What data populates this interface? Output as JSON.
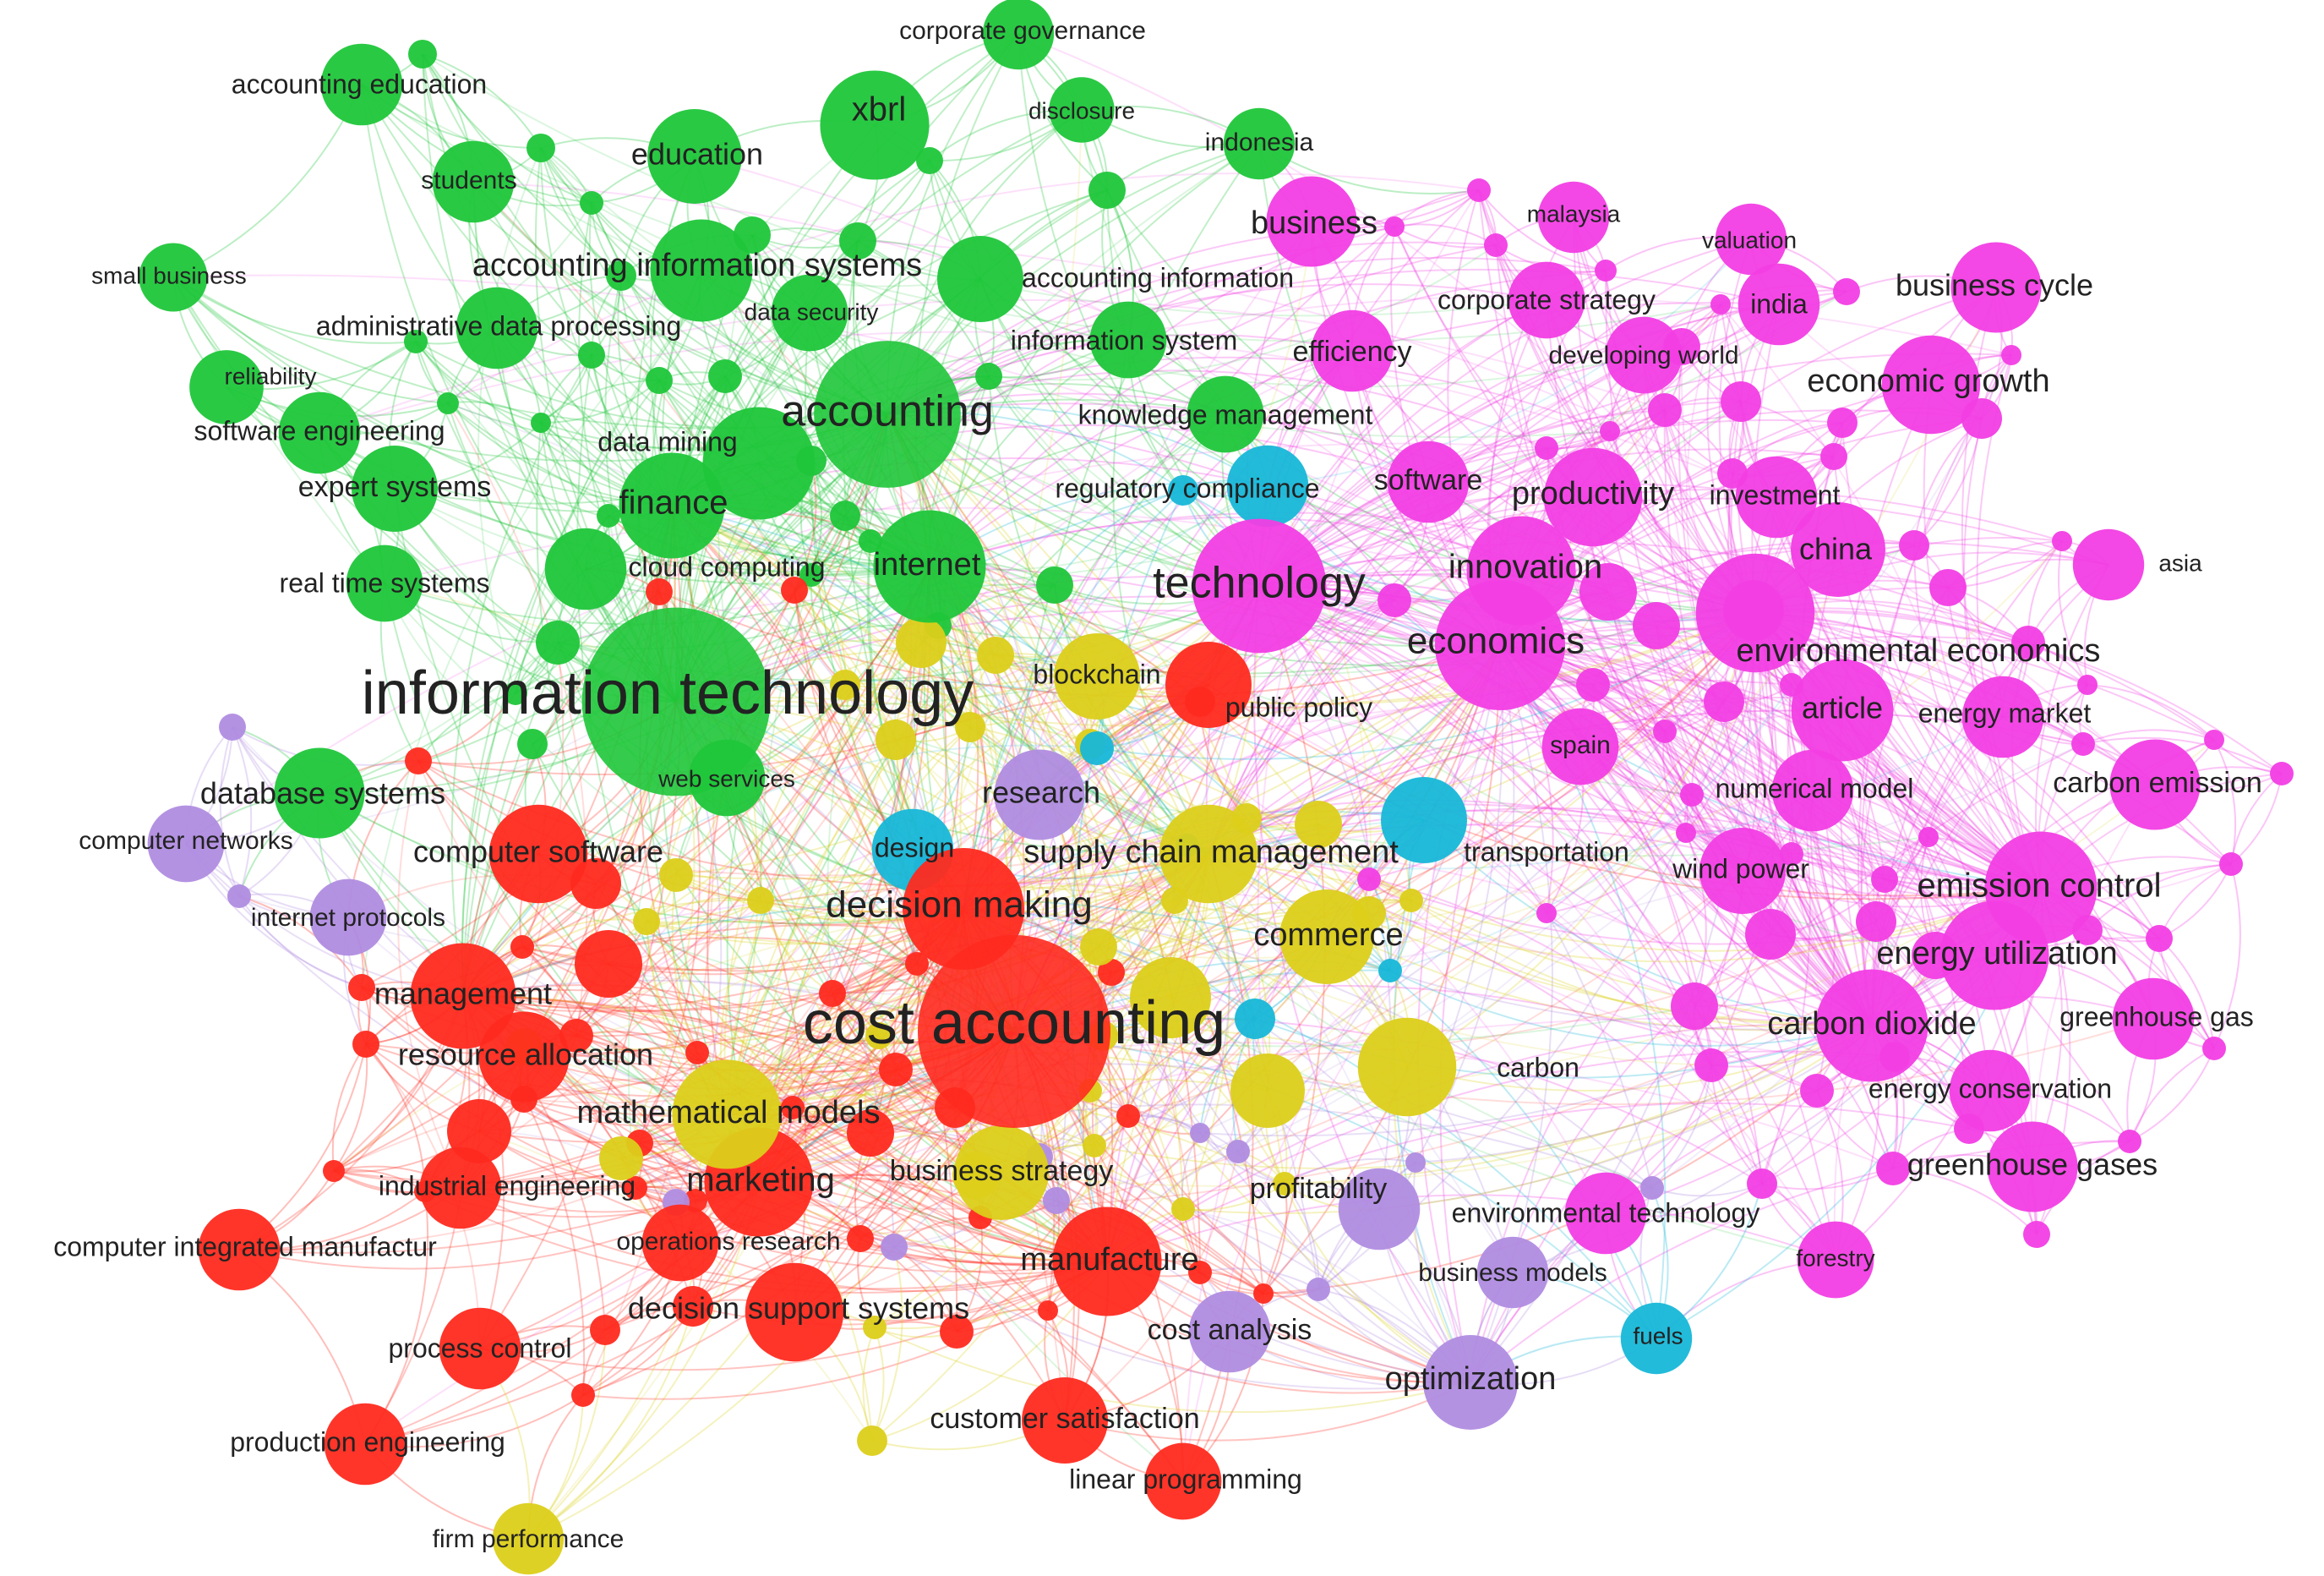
{
  "colors": {
    "green": "#1fc63a",
    "pink": "#f23ee4",
    "red": "#ff2a1f",
    "yellow": "#dccf1a",
    "cyan": "#17b7d8",
    "purple": "#b08ce0"
  },
  "nodes": [
    {
      "id": "information_technology",
      "label": "information technology",
      "cluster": "green",
      "weight": 95
    },
    {
      "id": "accounting",
      "label": "accounting",
      "cluster": "green",
      "weight": 55
    },
    {
      "id": "xbrl",
      "label": "xbrl",
      "cluster": "green",
      "weight": 28
    },
    {
      "id": "education",
      "label": "education",
      "cluster": "green",
      "weight": 20
    },
    {
      "id": "accounting_education",
      "label": "accounting education",
      "cluster": "green",
      "weight": 14
    },
    {
      "id": "corporate_governance",
      "label": "corporate governance",
      "cluster": "green",
      "weight": 10
    },
    {
      "id": "disclosure",
      "label": "disclosure",
      "cluster": "green",
      "weight": 8
    },
    {
      "id": "indonesia",
      "label": "indonesia",
      "cluster": "green",
      "weight": 10
    },
    {
      "id": "students",
      "label": "students",
      "cluster": "green",
      "weight": 14
    },
    {
      "id": "small_business",
      "label": "small business",
      "cluster": "green",
      "weight": 9
    },
    {
      "id": "accounting_information_systems",
      "label": "accounting information systems",
      "cluster": "green",
      "weight": 24
    },
    {
      "id": "accounting_information",
      "label": "accounting information",
      "cluster": "green",
      "weight": 16
    },
    {
      "id": "administrative_data_processing",
      "label": "administrative data processing",
      "cluster": "green",
      "weight": 14
    },
    {
      "id": "data_security",
      "label": "data security",
      "cluster": "green",
      "weight": 12
    },
    {
      "id": "information_system",
      "label": "information system",
      "cluster": "green",
      "weight": 12
    },
    {
      "id": "reliability",
      "label": "reliability",
      "cluster": "green",
      "weight": 11
    },
    {
      "id": "software_engineering",
      "label": "software engineering",
      "cluster": "green",
      "weight": 14
    },
    {
      "id": "data_mining",
      "label": "data mining",
      "cluster": "green",
      "weight": 30
    },
    {
      "id": "knowledge_management",
      "label": "knowledge management",
      "cluster": "green",
      "weight": 12
    },
    {
      "id": "expert_systems",
      "label": "expert systems",
      "cluster": "green",
      "weight": 16
    },
    {
      "id": "finance",
      "label": "finance",
      "cluster": "green",
      "weight": 26
    },
    {
      "id": "real_time_systems",
      "label": "real time systems",
      "cluster": "green",
      "weight": 12
    },
    {
      "id": "cloud_computing",
      "label": "cloud computing",
      "cluster": "green",
      "weight": 14
    },
    {
      "id": "internet",
      "label": "internet",
      "cluster": "green",
      "weight": 30
    },
    {
      "id": "database_systems",
      "label": "database systems",
      "cluster": "green",
      "weight": 18
    },
    {
      "id": "web_services",
      "label": "web services",
      "cluster": "green",
      "weight": 12
    },
    {
      "id": "business",
      "label": "business",
      "cluster": "pink",
      "weight": 18
    },
    {
      "id": "malaysia",
      "label": "malaysia",
      "cluster": "pink",
      "weight": 10
    },
    {
      "id": "valuation",
      "label": "valuation",
      "cluster": "pink",
      "weight": 10
    },
    {
      "id": "business_cycle",
      "label": "business cycle",
      "cluster": "pink",
      "weight": 18
    },
    {
      "id": "corporate_strategy",
      "label": "corporate strategy",
      "cluster": "pink",
      "weight": 12
    },
    {
      "id": "india",
      "label": "india",
      "cluster": "pink",
      "weight": 14
    },
    {
      "id": "efficiency",
      "label": "efficiency",
      "cluster": "pink",
      "weight": 14
    },
    {
      "id": "developing_world",
      "label": "developing world",
      "cluster": "pink",
      "weight": 12
    },
    {
      "id": "economic_growth",
      "label": "economic growth",
      "cluster": "pink",
      "weight": 22
    },
    {
      "id": "software",
      "label": "software",
      "cluster": "pink",
      "weight": 14
    },
    {
      "id": "productivity",
      "label": "productivity",
      "cluster": "pink",
      "weight": 22
    },
    {
      "id": "investment",
      "label": "investment",
      "cluster": "pink",
      "weight": 14
    },
    {
      "id": "technology",
      "label": "technology",
      "cluster": "pink",
      "weight": 45
    },
    {
      "id": "innovation",
      "label": "innovation",
      "cluster": "pink",
      "weight": 28
    },
    {
      "id": "china",
      "label": "china",
      "cluster": "pink",
      "weight": 20
    },
    {
      "id": "asia",
      "label": "asia",
      "cluster": "pink",
      "weight": 10
    },
    {
      "id": "economics",
      "label": "economics",
      "cluster": "pink",
      "weight": 42
    },
    {
      "id": "environmental_economics",
      "label": "environmental economics",
      "cluster": "pink",
      "weight": 34
    },
    {
      "id": "article",
      "label": "article",
      "cluster": "pink",
      "weight": 24
    },
    {
      "id": "energy_market",
      "label": "energy market",
      "cluster": "pink",
      "weight": 14
    },
    {
      "id": "spain",
      "label": "spain",
      "cluster": "pink",
      "weight": 12
    },
    {
      "id": "numerical_model",
      "label": "numerical model",
      "cluster": "pink",
      "weight": 14
    },
    {
      "id": "carbon_emission",
      "label": "carbon emission",
      "cluster": "pink",
      "weight": 18
    },
    {
      "id": "wind_power",
      "label": "wind power",
      "cluster": "pink",
      "weight": 16
    },
    {
      "id": "emission_control",
      "label": "emission control",
      "cluster": "pink",
      "weight": 30
    },
    {
      "id": "energy_utilization",
      "label": "energy utilization",
      "cluster": "pink",
      "weight": 28
    },
    {
      "id": "carbon_dioxide",
      "label": "carbon dioxide",
      "cluster": "pink",
      "weight": 30
    },
    {
      "id": "greenhouse_gas",
      "label": "greenhouse gas",
      "cluster": "pink",
      "weight": 14
    },
    {
      "id": "energy_conservation",
      "label": "energy conservation",
      "cluster": "pink",
      "weight": 14
    },
    {
      "id": "greenhouse_gases",
      "label": "greenhouse gases",
      "cluster": "pink",
      "weight": 18
    },
    {
      "id": "environmental_technology",
      "label": "environmental technology",
      "cluster": "pink",
      "weight": 14
    },
    {
      "id": "forestry",
      "label": "forestry",
      "cluster": "pink",
      "weight": 12
    },
    {
      "id": "cost_accounting",
      "label": "cost accounting",
      "cluster": "red",
      "weight": 100
    },
    {
      "id": "decision_making",
      "label": "decision making",
      "cluster": "red",
      "weight": 36
    },
    {
      "id": "computer_software",
      "label": "computer software",
      "cluster": "red",
      "weight": 22
    },
    {
      "id": "management",
      "label": "management",
      "cluster": "red",
      "weight": 26
    },
    {
      "id": "resource_allocation",
      "label": "resource allocation",
      "cluster": "red",
      "weight": 18
    },
    {
      "id": "industrial_engineering",
      "label": "industrial engineering",
      "cluster": "red",
      "weight": 14
    },
    {
      "id": "marketing",
      "label": "marketing",
      "cluster": "red",
      "weight": 28
    },
    {
      "id": "computer_integrated_manufactur",
      "label": "computer integrated manufactur",
      "cluster": "red",
      "weight": 14
    },
    {
      "id": "operations_research",
      "label": "operations research",
      "cluster": "red",
      "weight": 12
    },
    {
      "id": "manufacture",
      "label": "manufacture",
      "cluster": "red",
      "weight": 28
    },
    {
      "id": "decision_support_systems",
      "label": "decision support systems",
      "cluster": "red",
      "weight": 22
    },
    {
      "id": "process_control",
      "label": "process control",
      "cluster": "red",
      "weight": 14
    },
    {
      "id": "production_engineering",
      "label": "production engineering",
      "cluster": "red",
      "weight": 14
    },
    {
      "id": "customer_satisfaction",
      "label": "customer satisfaction",
      "cluster": "red",
      "weight": 16
    },
    {
      "id": "linear_programming",
      "label": "linear programming",
      "cluster": "red",
      "weight": 12
    },
    {
      "id": "public_policy",
      "label": "public policy",
      "cluster": "red",
      "weight": 16
    },
    {
      "id": "mathematical_models",
      "label": "mathematical models",
      "cluster": "yellow",
      "weight": 28
    },
    {
      "id": "business_strategy",
      "label": "business strategy",
      "cluster": "yellow",
      "weight": 20
    },
    {
      "id": "supply_chain_management",
      "label": "supply chain management",
      "cluster": "yellow",
      "weight": 22
    },
    {
      "id": "commerce",
      "label": "commerce",
      "cluster": "yellow",
      "weight": 20
    },
    {
      "id": "carbon",
      "label": "carbon",
      "cluster": "yellow",
      "weight": 22
    },
    {
      "id": "firm_performance",
      "label": "firm performance",
      "cluster": "yellow",
      "weight": 10
    },
    {
      "id": "blockchain",
      "label": "blockchain",
      "cluster": "yellow",
      "weight": 16
    },
    {
      "id": "regulatory_compliance",
      "label": "regulatory compliance",
      "cluster": "cyan",
      "weight": 14
    },
    {
      "id": "design",
      "label": "design",
      "cluster": "cyan",
      "weight": 14
    },
    {
      "id": "transportation",
      "label": "transportation",
      "cluster": "cyan",
      "weight": 16
    },
    {
      "id": "fuels",
      "label": "fuels",
      "cluster": "cyan",
      "weight": 10
    },
    {
      "id": "research",
      "label": "research",
      "cluster": "purple",
      "weight": 18
    },
    {
      "id": "computer_networks",
      "label": "computer networks",
      "cluster": "purple",
      "weight": 12
    },
    {
      "id": "internet_protocols",
      "label": "internet protocols",
      "cluster": "purple",
      "weight": 12
    },
    {
      "id": "profitability",
      "label": "profitability",
      "cluster": "purple",
      "weight": 14
    },
    {
      "id": "business_models",
      "label": "business models",
      "cluster": "purple",
      "weight": 10
    },
    {
      "id": "cost_analysis",
      "label": "cost analysis",
      "cluster": "purple",
      "weight": 14
    },
    {
      "id": "optimization",
      "label": "optimization",
      "cluster": "purple",
      "weight": 20
    }
  ]
}
